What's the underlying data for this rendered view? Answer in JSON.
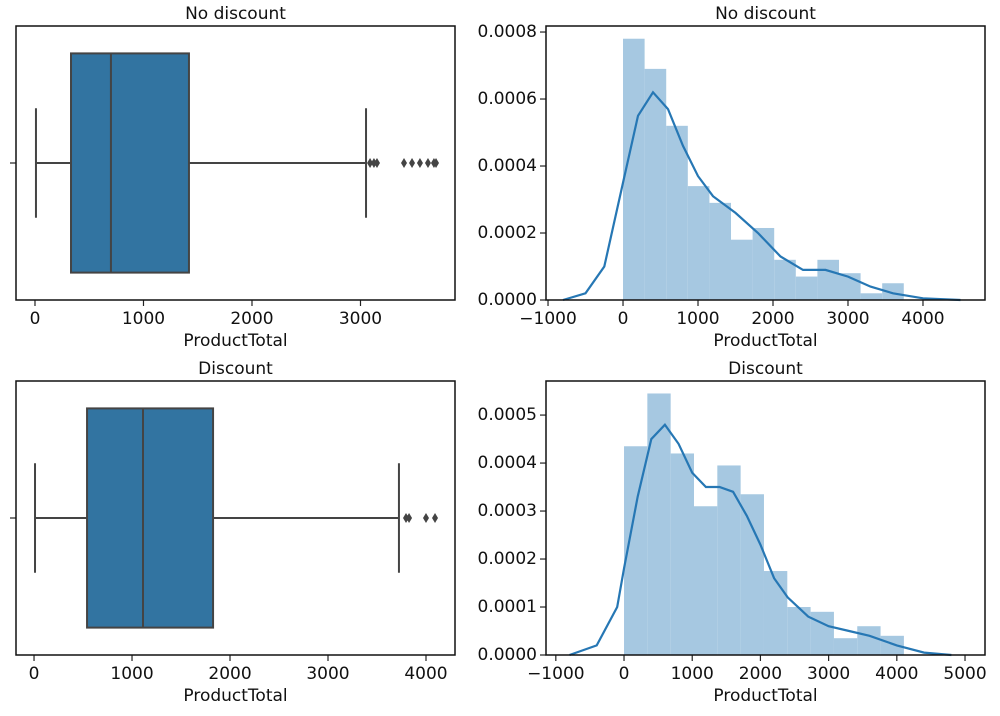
{
  "chart_data": [
    {
      "type": "box",
      "title": "No discount",
      "x_label": "ProductTotal",
      "xlim": [
        -175,
        3871
      ],
      "xticks": [
        0,
        1000,
        2000,
        3000
      ],
      "whislo": 9,
      "q1": 332,
      "median": 700,
      "q3": 1419,
      "whishi": 3051,
      "fliers": [
        3088,
        3124,
        3152,
        3401,
        3475,
        3548,
        3622,
        3677,
        3696
      ],
      "color": "#3274a1",
      "line_color": "#444444"
    },
    {
      "type": "histogram",
      "title": "No discount",
      "x_label": "ProductTotal",
      "xlim": [
        -1027,
        4827
      ],
      "xticks": [
        {
          "value": -1000,
          "label": "−1000"
        },
        0,
        1000,
        2000,
        3000,
        4000
      ],
      "ylim": [
        0,
        0.000818
      ],
      "yticks": [
        {
          "value": 0,
          "label": "0.0000"
        },
        {
          "value": 0.0002,
          "label": "0.0002"
        },
        {
          "value": 0.0004,
          "label": "0.0004"
        },
        {
          "value": 0.0006,
          "label": "0.0006"
        },
        {
          "value": 0.0008,
          "label": "0.0008"
        }
      ],
      "bins": [
        0,
        288,
        576,
        864,
        1152,
        1440,
        1728,
        2016,
        2304,
        2592,
        2880,
        3168,
        3456,
        3744
      ],
      "values": [
        0.00078,
        0.00069,
        0.00052,
        0.00034,
        0.00029,
        0.00018,
        0.000215,
        0.00012,
        7e-05,
        0.00012,
        8e-05,
        2e-05,
        5e-05
      ],
      "color": "#a6c8e1",
      "kde": {
        "color": "#2677b4",
        "x": [
          -800,
          -500,
          -250,
          0,
          200,
          400,
          600,
          800,
          1000,
          1200,
          1500,
          1800,
          2100,
          2400,
          2700,
          3000,
          3300,
          3600,
          4000,
          4500
        ],
        "y": [
          0,
          2e-05,
          0.0001,
          0.00035,
          0.00055,
          0.00062,
          0.00057,
          0.00046,
          0.00037,
          0.00031,
          0.00026,
          0.0002,
          0.00013,
          9e-05,
          9e-05,
          7e-05,
          4e-05,
          2e-05,
          5e-06,
          0
        ]
      }
    },
    {
      "type": "box",
      "title": "Discount",
      "x_label": "ProductTotal",
      "xlim": [
        -184,
        4296
      ],
      "xticks": [
        0,
        1000,
        2000,
        3000,
        4000
      ],
      "whislo": 10,
      "q1": 541,
      "median": 1112,
      "q3": 1827,
      "whishi": 3724,
      "fliers": [
        3796,
        3827,
        4000,
        4092
      ],
      "color": "#3274a1",
      "line_color": "#444444"
    },
    {
      "type": "histogram",
      "title": "Discount",
      "x_label": "ProductTotal",
      "xlim": [
        -1144,
        5293
      ],
      "xticks": [
        {
          "value": -1000,
          "label": "−1000"
        },
        0,
        1000,
        2000,
        3000,
        4000,
        5000
      ],
      "ylim": [
        0,
        0.000571
      ],
      "yticks": [
        {
          "value": 0,
          "label": "0.0000"
        },
        {
          "value": 0.0001,
          "label": "0.0001"
        },
        {
          "value": 0.0002,
          "label": "0.0002"
        },
        {
          "value": 0.0003,
          "label": "0.0003"
        },
        {
          "value": 0.0004,
          "label": "0.0004"
        },
        {
          "value": 0.0005,
          "label": "0.0005"
        }
      ],
      "bins": [
        0,
        342,
        684,
        1026,
        1368,
        1710,
        2052,
        2394,
        2736,
        3078,
        3420,
        3762,
        4104
      ],
      "values": [
        0.000435,
        0.000545,
        0.00042,
        0.00031,
        0.000395,
        0.000335,
        0.000175,
        0.0001,
        9e-05,
        3.5e-05,
        6e-05,
        4e-05
      ],
      "color": "#a6c8e1",
      "kde": {
        "color": "#2677b4",
        "x": [
          -800,
          -400,
          -100,
          0,
          200,
          400,
          600,
          800,
          1000,
          1200,
          1400,
          1600,
          1800,
          2000,
          2200,
          2400,
          2700,
          3000,
          3300,
          3600,
          4000,
          4400,
          4800
        ],
        "y": [
          0,
          2e-05,
          0.0001,
          0.00018,
          0.00033,
          0.00045,
          0.00048,
          0.00044,
          0.00038,
          0.00035,
          0.00035,
          0.00034,
          0.00029,
          0.00023,
          0.00016,
          0.00012,
          8e-05,
          6e-05,
          5e-05,
          4e-05,
          2e-05,
          5e-06,
          0
        ]
      }
    }
  ]
}
